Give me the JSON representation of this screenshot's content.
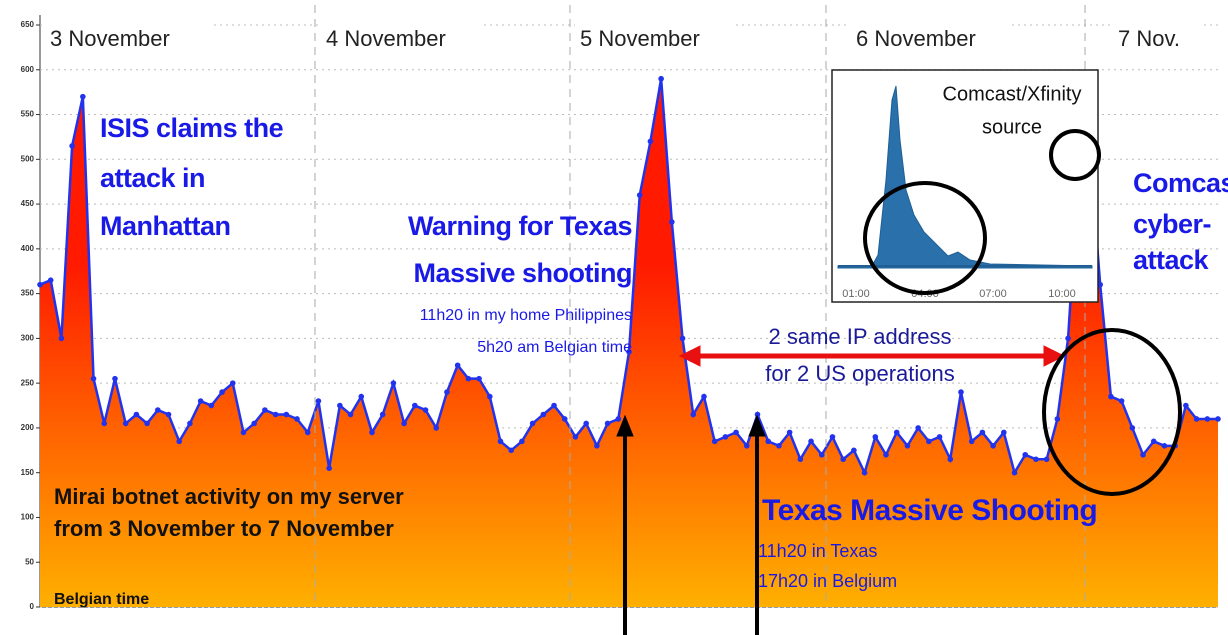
{
  "chart_data": {
    "type": "area",
    "color": "#2233ee",
    "fill_top": "#ff1a00",
    "fill_bottom": "#ffb000",
    "grid": true,
    "ylim": [
      0,
      650
    ],
    "yticks": [
      0,
      50,
      100,
      150,
      200,
      250,
      300,
      350,
      400,
      450,
      500,
      550,
      600,
      650
    ],
    "values": [
      360,
      365,
      300,
      515,
      570,
      255,
      205,
      255,
      205,
      215,
      205,
      220,
      215,
      185,
      205,
      230,
      225,
      240,
      250,
      195,
      205,
      220,
      215,
      215,
      210,
      195,
      230,
      155,
      225,
      215,
      235,
      195,
      215,
      250,
      205,
      225,
      220,
      200,
      240,
      270,
      255,
      255,
      235,
      185,
      175,
      185,
      205,
      215,
      225,
      210,
      190,
      205,
      180,
      205,
      210,
      285,
      460,
      520,
      590,
      430,
      300,
      215,
      235,
      185,
      190,
      195,
      180,
      215,
      185,
      180,
      195,
      165,
      185,
      170,
      190,
      165,
      175,
      150,
      190,
      170,
      195,
      180,
      200,
      185,
      190,
      165,
      240,
      185,
      195,
      180,
      195,
      150,
      170,
      165,
      165,
      210,
      300,
      490,
      515,
      360,
      235,
      230,
      200,
      170,
      185,
      180,
      180,
      225,
      210,
      210,
      210
    ],
    "day_labels": [
      "3 November",
      "4 November",
      "5 November",
      "6 November",
      "7 Nov."
    ],
    "annotations": {
      "isis": [
        "ISIS claims the",
        "attack in",
        "Manhattan"
      ],
      "warning": [
        "Warning for Texas",
        "Massive shooting"
      ],
      "philippines": [
        "11h20  in my home  Philippines",
        "5h20 am Belgian time"
      ],
      "ip": [
        "2 same IP address",
        "for 2 US operations"
      ],
      "comcast": [
        "Comcast",
        "cyber-",
        "attack"
      ],
      "mirai": [
        "Mirai botnet activity on my server",
        "from 3 November to 7 November"
      ],
      "belgian": "Belgian time",
      "texas": "Texas Massive Shooting",
      "texas_times": [
        "11h20 in Texas",
        "17h20 in Belgium"
      ]
    },
    "inset": {
      "title": [
        "Comcast/Xfinity",
        "source"
      ],
      "xtick_labels": [
        "01:00",
        "04:00",
        "07:00",
        "10:00"
      ]
    }
  }
}
